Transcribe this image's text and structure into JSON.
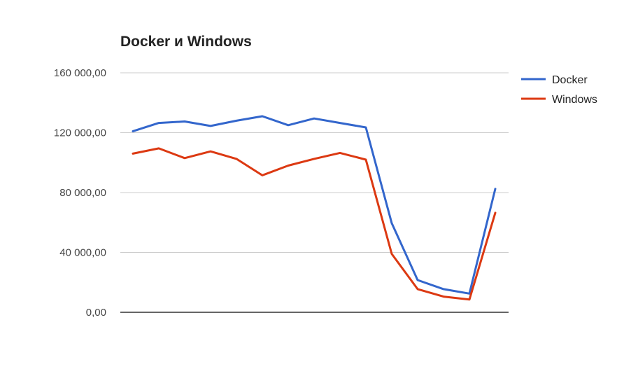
{
  "chart_data": {
    "type": "line",
    "title": "Docker и Windows",
    "xlabel": "",
    "ylabel": "",
    "ylim": [
      0,
      160000
    ],
    "yticks": [
      0,
      40000,
      80000,
      120000,
      160000
    ],
    "ytick_labels": [
      "0,00",
      "40 000,00",
      "80 000,00",
      "120 000,00",
      "160 000,00"
    ],
    "x": [
      1,
      2,
      3,
      4,
      5,
      6,
      7,
      8,
      9,
      10,
      11,
      12,
      13,
      14,
      15
    ],
    "grid": true,
    "legend_position": "right",
    "series": [
      {
        "name": "Docker",
        "color": "#3366cc",
        "values": [
          121000,
          126500,
          127500,
          124500,
          128000,
          131000,
          125000,
          129500,
          126500,
          123500,
          59500,
          21500,
          15500,
          12500,
          82500
        ]
      },
      {
        "name": "Windows",
        "color": "#dc3912",
        "values": [
          106000,
          109500,
          103000,
          107500,
          102500,
          91500,
          98000,
          102500,
          106500,
          102000,
          39000,
          15500,
          10500,
          8500,
          66500
        ]
      }
    ]
  }
}
